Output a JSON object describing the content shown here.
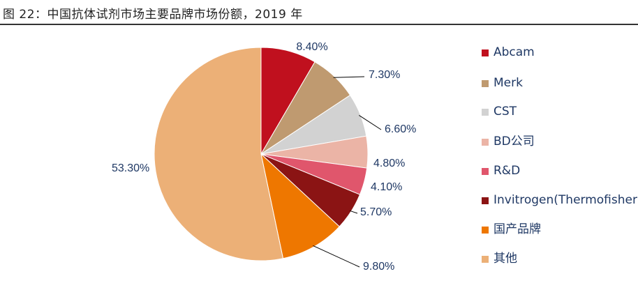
{
  "figure": {
    "title": "图 22：中国抗体试剂市场主要品牌市场份额，2019 年"
  },
  "chart_data": {
    "type": "pie",
    "title": "",
    "slices": [
      {
        "name": "Abcam",
        "value": 8.4,
        "label": "8.40%",
        "color": "#c0101e"
      },
      {
        "name": "Merk",
        "value": 7.3,
        "label": "7.30%",
        "color": "#bf9a70"
      },
      {
        "name": "CST",
        "value": 6.6,
        "label": "6.60%",
        "color": "#d2d2d2"
      },
      {
        "name": "BD公司",
        "value": 4.8,
        "label": "4.80%",
        "color": "#ebb4a6"
      },
      {
        "name": "R&D",
        "value": 4.1,
        "label": "4.10%",
        "color": "#e0566c"
      },
      {
        "name": "Invitrogen(Thermofisher)",
        "value": 5.7,
        "label": "5.70%",
        "color": "#8b1414"
      },
      {
        "name": "国产品牌",
        "value": 9.8,
        "label": "9.80%",
        "color": "#ee7700"
      },
      {
        "name": "其他",
        "value": 53.3,
        "label": "53.30%",
        "color": "#ecb077"
      }
    ],
    "legend_position": "right"
  }
}
